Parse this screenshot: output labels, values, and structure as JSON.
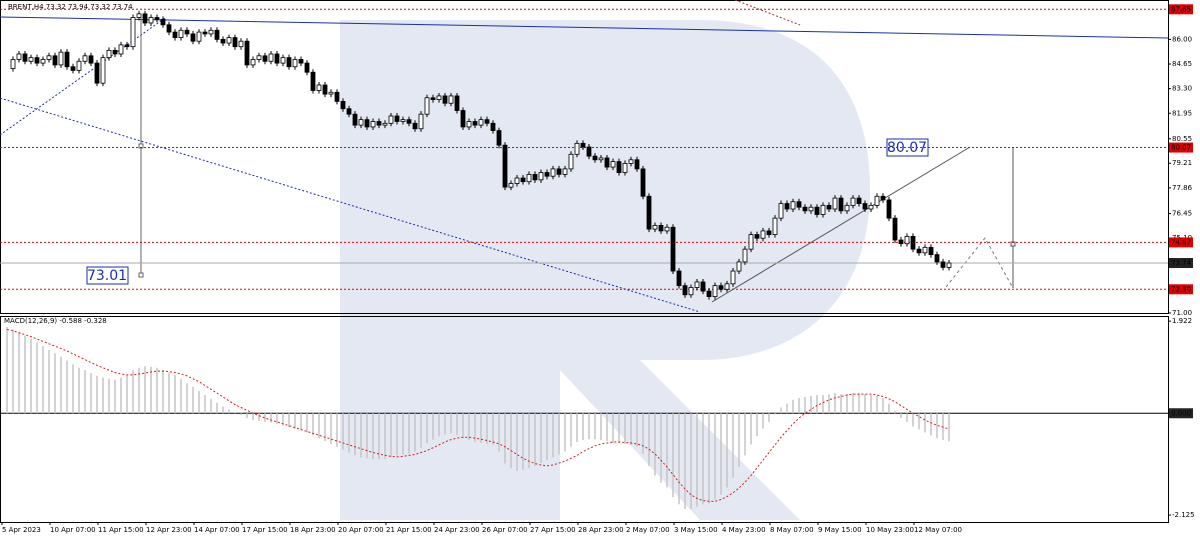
{
  "chart_data": {
    "type": "candlestick",
    "title": "BRENT,H4 73.32 73.94 73.32 73.74",
    "x_labels": [
      "5 Apr 2023",
      "10 Apr 07:00",
      "11 Apr 15:00",
      "12 Apr 23:00",
      "14 Apr 07:00",
      "17 Apr 15:00",
      "18 Apr 23:00",
      "20 Apr 07:00",
      "21 Apr 15:00",
      "24 Apr 23:00",
      "26 Apr 07:00",
      "27 Apr 15:00",
      "28 Apr 23:00",
      "2 May 07:00",
      "3 May 15:00",
      "4 May 23:00",
      "8 May 07:00",
      "9 May 15:00",
      "10 May 23:00",
      "12 May 07:00"
    ],
    "close": [
      84.4,
      84.9,
      85.2,
      84.8,
      85.0,
      84.7,
      84.9,
      85.1,
      84.6,
      85.3,
      84.5,
      84.3,
      84.8,
      85.1,
      84.7,
      83.6,
      85.0,
      85.4,
      85.2,
      85.7,
      85.6,
      87.2,
      87.4,
      86.9,
      87.2,
      87.1,
      86.8,
      86.4,
      86.1,
      86.5,
      86.3,
      85.9,
      86.4,
      86.3,
      86.5,
      86.0,
      85.8,
      86.1,
      85.6,
      85.9,
      84.6,
      84.9,
      85.1,
      84.8,
      85.2,
      84.7,
      85.0,
      84.5,
      84.9,
      84.7,
      84.2,
      83.2,
      83.5,
      83.0,
      83.1,
      82.6,
      82.2,
      81.9,
      81.3,
      81.6,
      81.2,
      81.5,
      81.3,
      81.4,
      81.8,
      81.5,
      81.6,
      81.4,
      81.1,
      81.9,
      82.8,
      82.7,
      82.9,
      82.5,
      82.9,
      82.1,
      81.2,
      81.5,
      81.3,
      81.6,
      81.4,
      81.0,
      80.2,
      77.9,
      78.1,
      78.4,
      78.2,
      78.6,
      78.3,
      78.7,
      78.5,
      78.9,
      78.6,
      78.9,
      79.7,
      80.3,
      80.1,
      79.6,
      79.4,
      79.5,
      79.0,
      79.3,
      78.7,
      79.2,
      79.4,
      78.9,
      77.4,
      75.6,
      75.8,
      75.5,
      75.7,
      73.3,
      72.5,
      72.0,
      72.4,
      72.7,
      72.2,
      71.9,
      72.5,
      72.3,
      72.6,
      73.3,
      73.8,
      74.5,
      75.3,
      75.1,
      75.5,
      75.3,
      76.2,
      77.0,
      76.7,
      77.1,
      76.8,
      76.6,
      76.8,
      76.4,
      76.9,
      76.7,
      77.3,
      76.6,
      76.9,
      77.3,
      77.0,
      76.7,
      76.9,
      77.4,
      77.2,
      76.2,
      75.0,
      74.8,
      75.2,
      74.5,
      74.3,
      74.6,
      74.2,
      73.8,
      73.5,
      73.74
    ],
    "ylim": [
      71.0,
      88.05
    ],
    "yticks": [
      {
        "value": 86,
        "label": "86.00"
      },
      84.65,
      {
        "value": 83.3,
        "label": "83.30"
      },
      81.95,
      80.55,
      79.21,
      77.86,
      76.45,
      {
        "value": 75.1,
        "label": "75.10"
      },
      {
        "value": 71,
        "label": "71.00"
      }
    ],
    "levels": [
      87.65,
      80.07,
      74.87,
      {
        "value": 72.3,
        "label": "72.30"
      }
    ],
    "level_color": "#e00000",
    "last_price": 73.74,
    "annotations": [
      "80.07",
      "73.01"
    ],
    "macd": {
      "title": "MACD(12,26,9) -0.588 -0.328",
      "histogram": [
        1.8,
        1.75,
        1.7,
        1.62,
        1.55,
        1.48,
        1.4,
        1.32,
        1.25,
        1.18,
        1.1,
        1.02,
        0.95,
        0.9,
        0.84,
        0.78,
        0.74,
        0.72,
        0.7,
        0.74,
        0.8,
        0.9,
        0.95,
        0.98,
        0.97,
        0.95,
        0.9,
        0.85,
        0.8,
        0.72,
        0.62,
        0.55,
        0.46,
        0.38,
        0.3,
        0.22,
        0.14,
        0.08,
        0.02,
        -0.04,
        -0.1,
        -0.14,
        -0.16,
        -0.18,
        -0.2,
        -0.22,
        -0.26,
        -0.3,
        -0.32,
        -0.36,
        -0.4,
        -0.46,
        -0.52,
        -0.58,
        -0.64,
        -0.7,
        -0.76,
        -0.82,
        -0.88,
        -0.92,
        -0.94,
        -0.96,
        -0.96,
        -0.95,
        -0.92,
        -0.88,
        -0.86,
        -0.84,
        -0.8,
        -0.72,
        -0.62,
        -0.55,
        -0.48,
        -0.44,
        -0.42,
        -0.46,
        -0.52,
        -0.56,
        -0.6,
        -0.62,
        -0.64,
        -0.66,
        -0.8,
        -1.05,
        -1.15,
        -1.2,
        -1.18,
        -1.14,
        -1.1,
        -1.04,
        -0.98,
        -0.92,
        -0.86,
        -0.8,
        -0.7,
        -0.6,
        -0.56,
        -0.54,
        -0.54,
        -0.56,
        -0.58,
        -0.62,
        -0.62,
        -0.64,
        -0.66,
        -0.7,
        -0.85,
        -1.1,
        -1.3,
        -1.45,
        -1.55,
        -1.75,
        -1.9,
        -2.0,
        -2.0,
        -1.95,
        -1.9,
        -1.88,
        -1.8,
        -1.7,
        -1.55,
        -1.35,
        -1.12,
        -0.88,
        -0.65,
        -0.48,
        -0.32,
        -0.18,
        -0.02,
        0.12,
        0.2,
        0.28,
        0.32,
        0.34,
        0.36,
        0.38,
        0.38,
        0.4,
        0.42,
        0.4,
        0.4,
        0.42,
        0.42,
        0.4,
        0.38,
        0.36,
        0.32,
        0.2,
        0.05,
        -0.1,
        -0.18,
        -0.28,
        -0.34,
        -0.4,
        -0.46,
        -0.52,
        -0.56,
        -0.588
      ],
      "signal": [
        1.75,
        1.72,
        1.68,
        1.64,
        1.6,
        1.55,
        1.5,
        1.45,
        1.4,
        1.35,
        1.3,
        1.24,
        1.18,
        1.12,
        1.06,
        1.0,
        0.95,
        0.9,
        0.85,
        0.82,
        0.8,
        0.8,
        0.82,
        0.84,
        0.86,
        0.88,
        0.88,
        0.87,
        0.85,
        0.82,
        0.78,
        0.72,
        0.66,
        0.58,
        0.5,
        0.42,
        0.34,
        0.26,
        0.18,
        0.12,
        0.06,
        0.0,
        -0.05,
        -0.1,
        -0.14,
        -0.18,
        -0.22,
        -0.26,
        -0.3,
        -0.34,
        -0.38,
        -0.42,
        -0.46,
        -0.5,
        -0.54,
        -0.58,
        -0.62,
        -0.66,
        -0.7,
        -0.74,
        -0.78,
        -0.82,
        -0.85,
        -0.88,
        -0.9,
        -0.91,
        -0.9,
        -0.88,
        -0.86,
        -0.82,
        -0.78,
        -0.72,
        -0.66,
        -0.6,
        -0.55,
        -0.52,
        -0.5,
        -0.5,
        -0.52,
        -0.54,
        -0.57,
        -0.6,
        -0.64,
        -0.7,
        -0.78,
        -0.86,
        -0.94,
        -1.0,
        -1.05,
        -1.08,
        -1.1,
        -1.08,
        -1.04,
        -1.0,
        -0.94,
        -0.88,
        -0.8,
        -0.74,
        -0.68,
        -0.64,
        -0.62,
        -0.6,
        -0.6,
        -0.61,
        -0.62,
        -0.64,
        -0.68,
        -0.75,
        -0.85,
        -0.98,
        -1.12,
        -1.28,
        -1.44,
        -1.58,
        -1.7,
        -1.78,
        -1.82,
        -1.84,
        -1.84,
        -1.8,
        -1.74,
        -1.66,
        -1.56,
        -1.44,
        -1.3,
        -1.14,
        -0.98,
        -0.82,
        -0.66,
        -0.5,
        -0.36,
        -0.22,
        -0.1,
        0.0,
        0.08,
        0.16,
        0.22,
        0.28,
        0.32,
        0.35,
        0.38,
        0.4,
        0.4,
        0.4,
        0.4,
        0.38,
        0.35,
        0.3,
        0.24,
        0.16,
        0.08,
        0.0,
        -0.07,
        -0.14,
        -0.2,
        -0.25,
        -0.29,
        -0.328
      ],
      "histogram_color": "#c8c8c8",
      "signal_color": "#d02020",
      "ylim": [
        -2.27,
        2.03
      ],
      "yticks": [
        1.922,
        {
          "value": 0,
          "label": "0.000"
        },
        -2.125
      ]
    }
  }
}
